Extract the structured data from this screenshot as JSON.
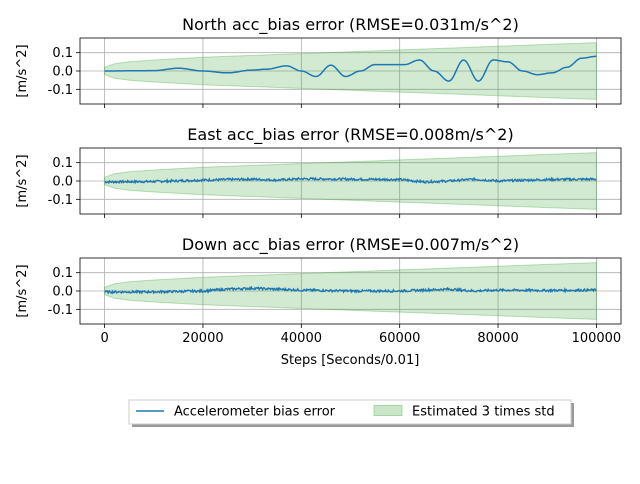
{
  "figure": {
    "xlabel": "Steps [Seconds/0.01]",
    "x_ticks": [
      "0",
      "20000",
      "40000",
      "60000",
      "80000",
      "100000"
    ],
    "legend": {
      "placement": "bottom-center",
      "entries": [
        {
          "label": "Accelerometer bias error",
          "kind": "line",
          "color": "#1f77b4"
        },
        {
          "label": "Estimated 3 times std",
          "kind": "patch",
          "color": "#2ca02c"
        }
      ]
    }
  },
  "chart_data": [
    {
      "type": "area",
      "title": "North acc_bias error (RMSE=0.031m/s^2)",
      "ylabel": "[m/s^2]",
      "xlim": [
        -5000,
        105000
      ],
      "ylim": [
        -0.18,
        0.18
      ],
      "yticks": [
        "0.1",
        "0.0",
        "-0.1"
      ],
      "grid": true,
      "series": [
        {
          "name": "Accelerometer bias error",
          "noise": "low",
          "x": [
            0,
            10000,
            15000,
            20000,
            25000,
            30000,
            33000,
            37000,
            40000,
            43000,
            46000,
            49000,
            52000,
            55000,
            58000,
            61000,
            64000,
            67000,
            70000,
            73000,
            76000,
            79000,
            82000,
            85000,
            88000,
            91000,
            94000,
            97000,
            100000
          ],
          "y": [
            0.0,
            0.002,
            0.015,
            0.0,
            -0.01,
            0.005,
            0.01,
            0.028,
            0.0,
            -0.03,
            0.032,
            -0.03,
            0.0,
            0.035,
            0.035,
            0.035,
            0.06,
            0.0,
            -0.055,
            0.06,
            -0.055,
            0.06,
            0.05,
            0.0,
            -0.02,
            -0.01,
            0.02,
            0.07,
            0.08
          ]
        },
        {
          "name": "Estimated 3 times std",
          "x": [
            0,
            2000,
            5000,
            10000,
            20000,
            30000,
            40000,
            50000,
            60000,
            70000,
            80000,
            90000,
            100000
          ],
          "upper": [
            0.02,
            0.04,
            0.05,
            0.06,
            0.075,
            0.085,
            0.095,
            0.105,
            0.115,
            0.125,
            0.135,
            0.145,
            0.155
          ],
          "lower": [
            -0.02,
            -0.04,
            -0.05,
            -0.06,
            -0.075,
            -0.085,
            -0.095,
            -0.105,
            -0.115,
            -0.125,
            -0.135,
            -0.145,
            -0.155
          ]
        }
      ]
    },
    {
      "type": "area",
      "title": "East acc_bias error (RMSE=0.008m/s^2)",
      "ylabel": "[m/s^2]",
      "xlim": [
        -5000,
        105000
      ],
      "ylim": [
        -0.18,
        0.18
      ],
      "yticks": [
        "0.1",
        "0.0",
        "-0.1"
      ],
      "grid": true,
      "series": [
        {
          "name": "Accelerometer bias error",
          "noise": "high",
          "x": [
            0,
            10000,
            20000,
            25000,
            30000,
            35000,
            40000,
            50000,
            60000,
            65000,
            70000,
            75000,
            80000,
            90000,
            100000
          ],
          "y": [
            -0.005,
            -0.003,
            0.005,
            0.008,
            0.01,
            0.005,
            0.012,
            0.01,
            0.008,
            -0.005,
            0.0,
            0.01,
            0.0,
            0.008,
            0.01
          ]
        },
        {
          "name": "Estimated 3 times std",
          "x": [
            0,
            2000,
            5000,
            10000,
            20000,
            30000,
            40000,
            50000,
            60000,
            70000,
            80000,
            90000,
            100000
          ],
          "upper": [
            0.02,
            0.04,
            0.05,
            0.06,
            0.075,
            0.085,
            0.095,
            0.105,
            0.115,
            0.125,
            0.135,
            0.145,
            0.155
          ],
          "lower": [
            -0.02,
            -0.04,
            -0.05,
            -0.06,
            -0.075,
            -0.085,
            -0.095,
            -0.105,
            -0.115,
            -0.125,
            -0.135,
            -0.145,
            -0.155
          ]
        }
      ]
    },
    {
      "type": "area",
      "title": "Down acc_bias error (RMSE=0.007m/s^2)",
      "ylabel": "[m/s^2]",
      "xlim": [
        -5000,
        105000
      ],
      "ylim": [
        -0.18,
        0.18
      ],
      "yticks": [
        "0.1",
        "0.0",
        "-0.1"
      ],
      "grid": true,
      "series": [
        {
          "name": "Accelerometer bias error",
          "noise": "high",
          "x": [
            0,
            10000,
            20000,
            25000,
            30000,
            35000,
            40000,
            50000,
            60000,
            65000,
            70000,
            75000,
            80000,
            90000,
            100000
          ],
          "y": [
            -0.005,
            -0.005,
            0.0,
            0.01,
            0.015,
            0.01,
            0.005,
            0.0,
            0.0,
            0.005,
            0.01,
            0.0,
            0.005,
            0.003,
            0.005
          ]
        },
        {
          "name": "Estimated 3 times std",
          "x": [
            0,
            2000,
            5000,
            10000,
            20000,
            30000,
            40000,
            50000,
            60000,
            70000,
            80000,
            90000,
            100000
          ],
          "upper": [
            0.02,
            0.04,
            0.05,
            0.06,
            0.075,
            0.085,
            0.095,
            0.105,
            0.115,
            0.125,
            0.135,
            0.145,
            0.155
          ],
          "lower": [
            -0.02,
            -0.04,
            -0.05,
            -0.06,
            -0.075,
            -0.085,
            -0.095,
            -0.105,
            -0.115,
            -0.125,
            -0.135,
            -0.145,
            -0.155
          ]
        }
      ]
    }
  ]
}
